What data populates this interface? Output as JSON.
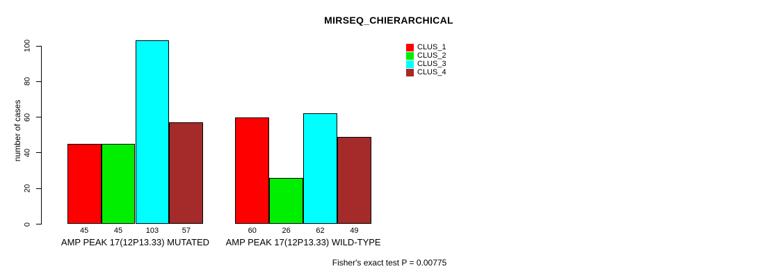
{
  "chart_data": {
    "type": "bar",
    "title": "MIRSEQ_CHIERARCHICAL",
    "ylabel": "number of cases",
    "xlabel": "",
    "categories": [
      "AMP PEAK 17(12P13.33) MUTATED",
      "AMP PEAK 17(12P13.33) WILD-TYPE"
    ],
    "series": [
      {
        "name": "CLUS_1",
        "color": "#FF0000",
        "values": [
          45,
          60
        ]
      },
      {
        "name": "CLUS_2",
        "color": "#00EE00",
        "values": [
          45,
          26
        ]
      },
      {
        "name": "CLUS_3",
        "color": "#00FFFF",
        "values": [
          103,
          62
        ]
      },
      {
        "name": "CLUS_4",
        "color": "#A52A2A",
        "values": [
          57,
          49
        ]
      }
    ],
    "yticks": [
      0,
      20,
      40,
      60,
      80,
      100
    ],
    "ylim": [
      0,
      100
    ],
    "bar_value_labels": true,
    "legend_position": "top-right",
    "legend_box": false,
    "grid": false,
    "annotation": "Fisher's exact test P = 0.00775",
    "colors": {
      "axis": "#000000",
      "text": "#000000",
      "background": "#FFFFFF"
    }
  }
}
